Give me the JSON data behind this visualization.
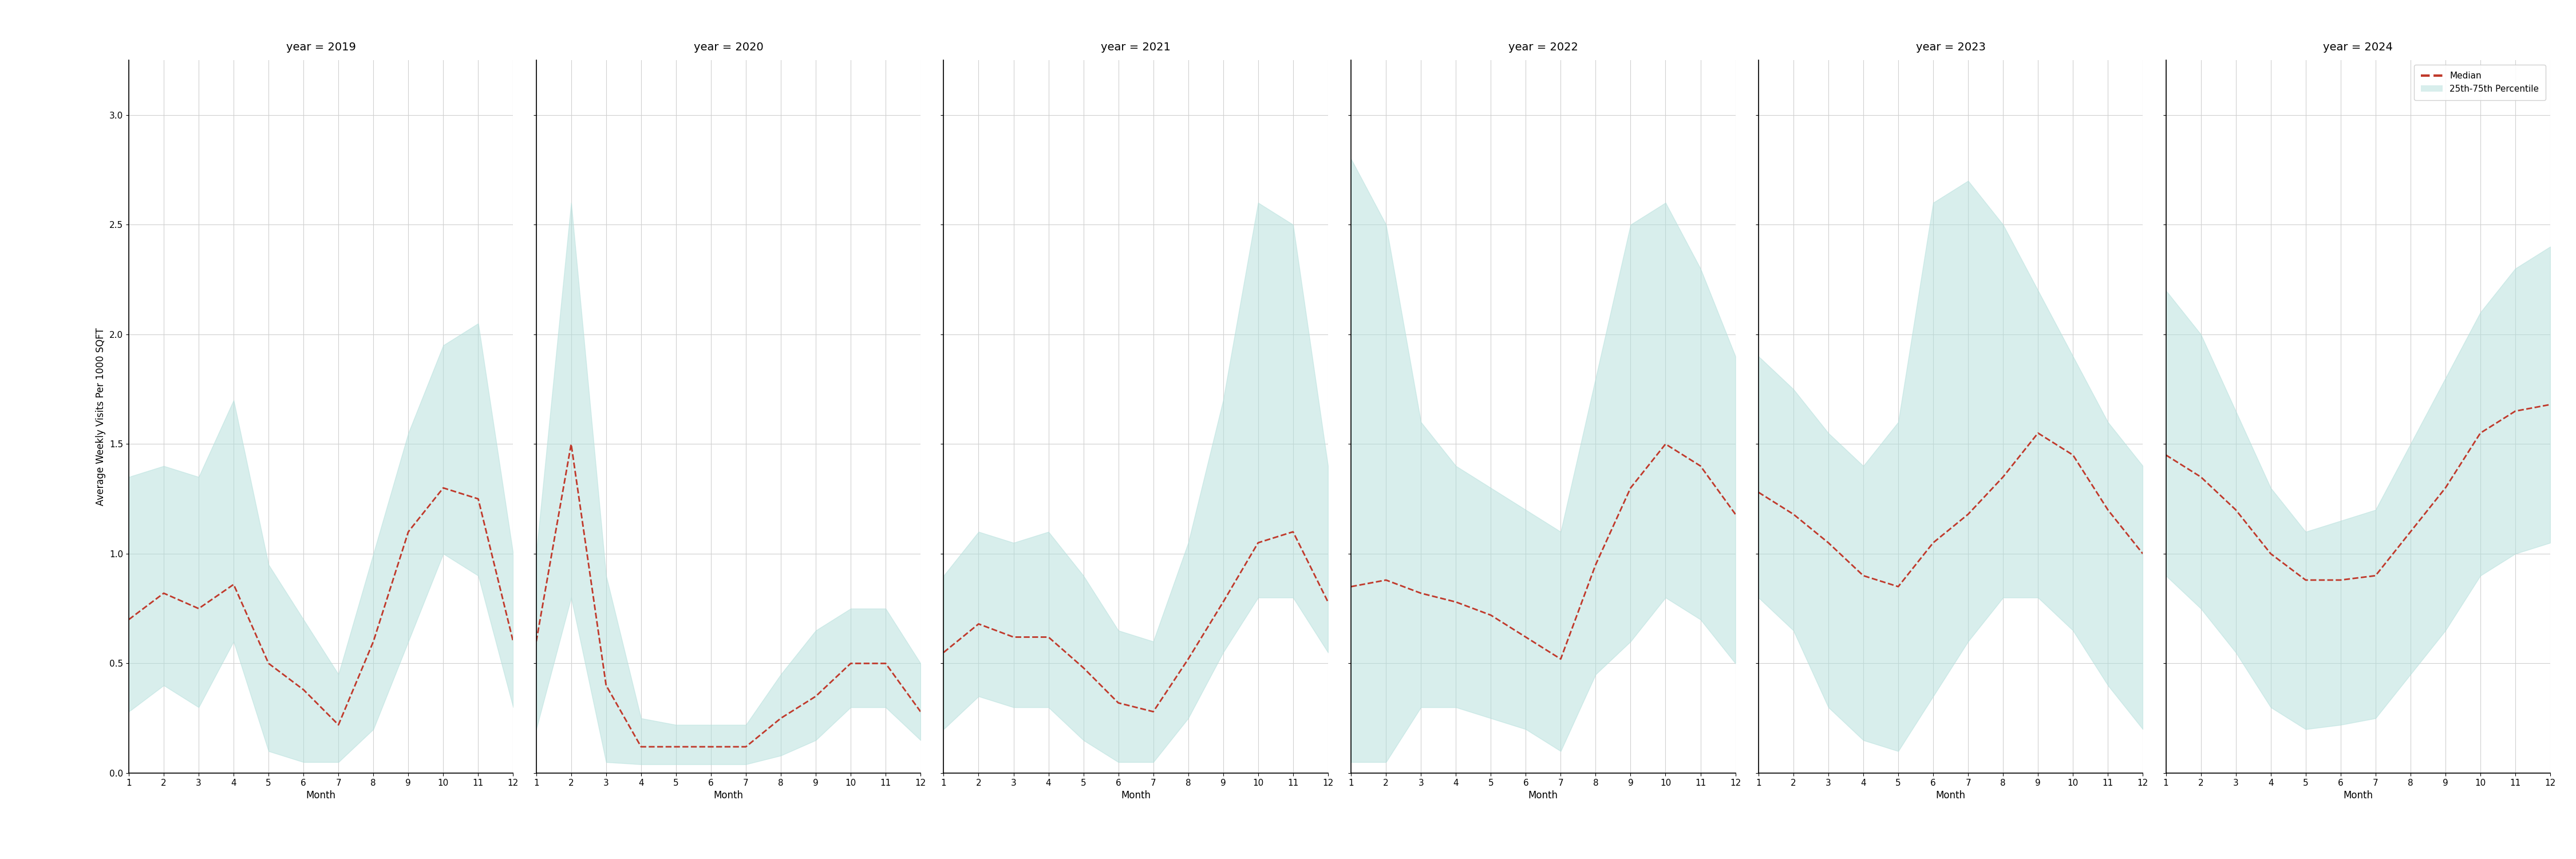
{
  "years": [
    2019,
    2020,
    2021,
    2022,
    2023,
    2024
  ],
  "months": [
    1,
    2,
    3,
    4,
    5,
    6,
    7,
    8,
    9,
    10,
    11,
    12
  ],
  "median": {
    "2019": [
      0.7,
      0.82,
      0.75,
      0.86,
      0.5,
      0.38,
      0.22,
      0.6,
      1.1,
      1.3,
      1.25,
      0.6
    ],
    "2020": [
      0.6,
      1.5,
      0.4,
      0.12,
      0.12,
      0.12,
      0.12,
      0.25,
      0.35,
      0.5,
      0.5,
      0.28
    ],
    "2021": [
      0.55,
      0.68,
      0.62,
      0.62,
      0.48,
      0.32,
      0.28,
      0.52,
      0.78,
      1.05,
      1.1,
      0.78
    ],
    "2022": [
      0.85,
      0.88,
      0.82,
      0.78,
      0.72,
      0.62,
      0.52,
      0.95,
      1.3,
      1.5,
      1.4,
      1.18
    ],
    "2023": [
      1.28,
      1.18,
      1.05,
      0.9,
      0.85,
      1.05,
      1.18,
      1.35,
      1.55,
      1.45,
      1.2,
      1.0
    ],
    "2024": [
      1.45,
      1.35,
      1.2,
      1.0,
      0.88,
      0.88,
      0.9,
      1.1,
      1.3,
      1.55,
      1.65,
      1.68
    ]
  },
  "p25": {
    "2019": [
      0.28,
      0.4,
      0.3,
      0.6,
      0.1,
      0.05,
      0.05,
      0.2,
      0.6,
      1.0,
      0.9,
      0.3
    ],
    "2020": [
      0.2,
      0.8,
      0.05,
      0.04,
      0.04,
      0.04,
      0.04,
      0.08,
      0.15,
      0.3,
      0.3,
      0.15
    ],
    "2021": [
      0.2,
      0.35,
      0.3,
      0.3,
      0.15,
      0.05,
      0.05,
      0.25,
      0.55,
      0.8,
      0.8,
      0.55
    ],
    "2022": [
      0.05,
      0.05,
      0.3,
      0.3,
      0.25,
      0.2,
      0.1,
      0.45,
      0.6,
      0.8,
      0.7,
      0.5
    ],
    "2023": [
      0.8,
      0.65,
      0.3,
      0.15,
      0.1,
      0.35,
      0.6,
      0.8,
      0.8,
      0.65,
      0.4,
      0.2
    ],
    "2024": [
      0.9,
      0.75,
      0.55,
      0.3,
      0.2,
      0.22,
      0.25,
      0.45,
      0.65,
      0.9,
      1.0,
      1.05
    ]
  },
  "p75": {
    "2019": [
      1.35,
      1.4,
      1.35,
      1.7,
      0.95,
      0.7,
      0.45,
      1.0,
      1.55,
      1.95,
      2.05,
      1.0
    ],
    "2020": [
      1.0,
      2.6,
      0.9,
      0.25,
      0.22,
      0.22,
      0.22,
      0.45,
      0.65,
      0.75,
      0.75,
      0.5
    ],
    "2021": [
      0.9,
      1.1,
      1.05,
      1.1,
      0.9,
      0.65,
      0.6,
      1.05,
      1.7,
      2.6,
      2.5,
      1.4
    ],
    "2022": [
      2.8,
      2.5,
      1.6,
      1.4,
      1.3,
      1.2,
      1.1,
      1.8,
      2.5,
      2.6,
      2.3,
      1.9
    ],
    "2023": [
      1.9,
      1.75,
      1.55,
      1.4,
      1.6,
      2.6,
      2.7,
      2.5,
      2.2,
      1.9,
      1.6,
      1.4
    ],
    "2024": [
      2.2,
      2.0,
      1.65,
      1.3,
      1.1,
      1.15,
      1.2,
      1.5,
      1.8,
      2.1,
      2.3,
      2.4
    ]
  },
  "ylim": [
    0.0,
    3.25
  ],
  "yticks": [
    0.0,
    0.5,
    1.0,
    1.5,
    2.0,
    2.5,
    3.0
  ],
  "ylabel": "Average Weekly Visits Per 1000 SQFT",
  "xlabel": "Month",
  "fill_color": "#b2dfdb",
  "fill_alpha": 0.5,
  "line_color": "#c0392b",
  "line_style": "--",
  "line_width": 2.0,
  "legend_median_label": "Median",
  "legend_band_label": "25th-75th Percentile",
  "bg_color": "#ffffff",
  "grid_color": "#d0d0d0",
  "title_fontsize": 14,
  "label_fontsize": 12,
  "tick_fontsize": 11
}
